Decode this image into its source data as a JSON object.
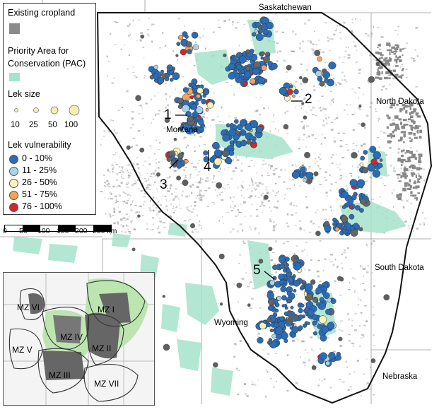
{
  "legend": {
    "cropland_label": "Existing cropland",
    "pac_label": "Priority Area for Conservation (PAC)",
    "pac_line1": "Priority Area for",
    "pac_line2": "Conservation (PAC)",
    "lek_size_title": "Lek size",
    "lek_sizes": [
      "10",
      "25",
      "50",
      "100"
    ],
    "vulnerability_title": "Lek vulnerability",
    "vulnerability_classes": [
      {
        "label": "0 - 10%",
        "color": "#2b6cb6"
      },
      {
        "label": "11 - 25%",
        "color": "#a9d3ea"
      },
      {
        "label": "26 - 50%",
        "color": "#fbf3b4"
      },
      {
        "label": "51 - 75%",
        "color": "#f5a25a"
      },
      {
        "label": "76 - 100%",
        "color": "#d7262a"
      }
    ],
    "cropland_color": "#8a8a8a",
    "pac_color": "#a6e3cc"
  },
  "scale_bar": {
    "labels": [
      "0",
      "50",
      "100",
      "150",
      "200",
      "250 km"
    ]
  },
  "regions": {
    "saskatchewan": "Saskatchewan",
    "north_dakota": "North Dakota",
    "montana": "Montana",
    "south_dakota": "South Dakota",
    "wyoming": "Wyoming",
    "nebraska": "Nebraska"
  },
  "callouts": [
    "1",
    "2",
    "3",
    "4",
    "5"
  ],
  "inset": {
    "zones": [
      "MZ I",
      "MZ II",
      "MZ III",
      "MZ IV",
      "MZ V",
      "MZ VI",
      "MZ VII"
    ]
  }
}
